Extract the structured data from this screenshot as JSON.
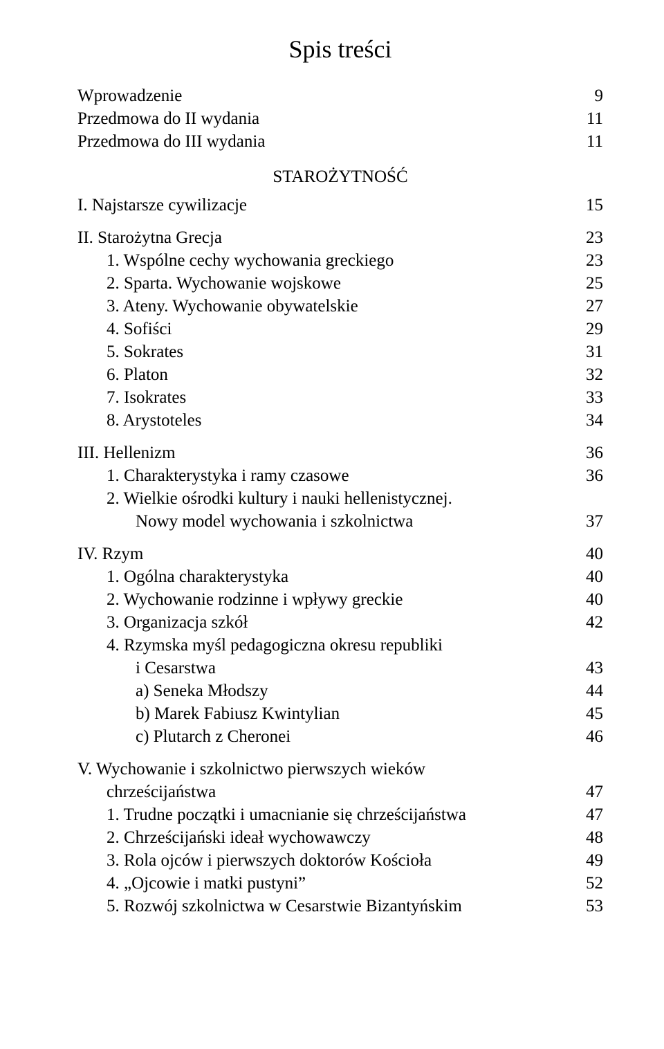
{
  "title": "Spis treści",
  "section_heading": "STAROŻYTNOŚĆ",
  "front": [
    {
      "label": "Wprowadzenie",
      "page": "9"
    },
    {
      "label": "Przedmowa do II wydania",
      "page": "11"
    },
    {
      "label": "Przedmowa do III wydania",
      "page": "11"
    }
  ],
  "chI": {
    "head": {
      "label": "I. Najstarsze cywilizacje",
      "page": "15"
    }
  },
  "chII": {
    "head": {
      "label": "II. Starożytna Grecja",
      "page": "23"
    },
    "items": [
      {
        "label": "1. Wspólne cechy wychowania greckiego",
        "page": "23"
      },
      {
        "label": "2. Sparta. Wychowanie wojskowe",
        "page": "25"
      },
      {
        "label": "3. Ateny. Wychowanie obywatelskie",
        "page": "27"
      },
      {
        "label": "4. Sofiści",
        "page": "29"
      },
      {
        "label": "5. Sokrates",
        "page": "31"
      },
      {
        "label": "6. Platon",
        "page": "32"
      },
      {
        "label": "7. Isokrates",
        "page": "33"
      },
      {
        "label": "8. Arystoteles",
        "page": "34"
      }
    ]
  },
  "chIII": {
    "head": {
      "label": "III. Hellenizm",
      "page": "36"
    },
    "item1": {
      "label": "1. Charakterystyka i ramy czasowe",
      "page": "36"
    },
    "item2a": {
      "label": "2. Wielkie ośrodki kultury i nauki hellenistycznej."
    },
    "item2b": {
      "label": "Nowy model wychowania i szkolnictwa",
      "page": "37"
    }
  },
  "chIV": {
    "head": {
      "label": "IV. Rzym",
      "page": "40"
    },
    "item1": {
      "label": "1. Ogólna charakterystyka",
      "page": "40"
    },
    "item2": {
      "label": "2. Wychowanie rodzinne i wpływy greckie",
      "page": "40"
    },
    "item3": {
      "label": "3. Organizacja szkół",
      "page": "42"
    },
    "item4a": {
      "label": "4. Rzymska myśl pedagogiczna okresu republiki"
    },
    "item4b": {
      "label": "i Cesarstwa",
      "page": "43"
    },
    "sub": [
      {
        "label": "a) Seneka Młodszy",
        "page": "44"
      },
      {
        "label": "b) Marek Fabiusz Kwintylian",
        "page": "45"
      },
      {
        "label": "c) Plutarch z Cheronei",
        "page": "46"
      }
    ]
  },
  "chV": {
    "head_a": {
      "label": "V. Wychowanie i szkolnictwo pierwszych wieków"
    },
    "head_b": {
      "label": "chrześcijaństwa",
      "page": "47"
    },
    "items": [
      {
        "label": "1. Trudne początki i umacnianie się chrześcijaństwa",
        "page": "47"
      },
      {
        "label": "2. Chrześcijański ideał wychowawczy",
        "page": "48"
      },
      {
        "label": "3. Rola ojców i pierwszych doktorów Kościoła",
        "page": "49"
      },
      {
        "label": "4. „Ojcowie i matki pustyni”",
        "page": "52"
      },
      {
        "label": "5. Rozwój szkolnictwa w Cesarstwie Bizantyńskim",
        "page": "53"
      }
    ]
  }
}
